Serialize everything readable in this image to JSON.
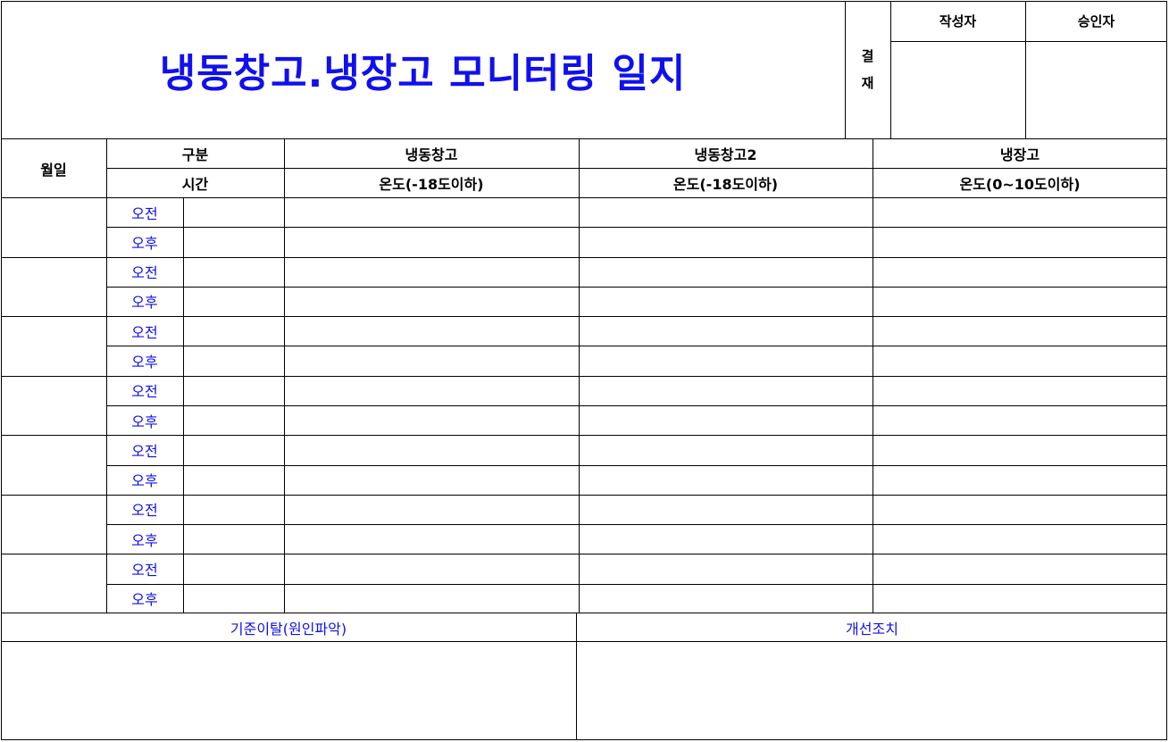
{
  "title": "냉동창고.냉장고 모니터링 일지",
  "approval": {
    "label_top": "결",
    "label_bottom": "재",
    "writer": "작성자",
    "approver": "승인자"
  },
  "table": {
    "date_header": "월일",
    "category_header": "구분",
    "time_header": "시간",
    "units": [
      {
        "name": "냉동창고",
        "condition": "온도(-18도이하)"
      },
      {
        "name": "냉동창고2",
        "condition": "온도(-18도이하)"
      },
      {
        "name": "냉장고",
        "condition": "온도(0~10도이하)"
      }
    ],
    "am_label": "오전",
    "pm_label": "오후",
    "day_rows": 7
  },
  "footer": {
    "deviation": "기준이탈(원인파악)",
    "corrective": "개선조치"
  }
}
